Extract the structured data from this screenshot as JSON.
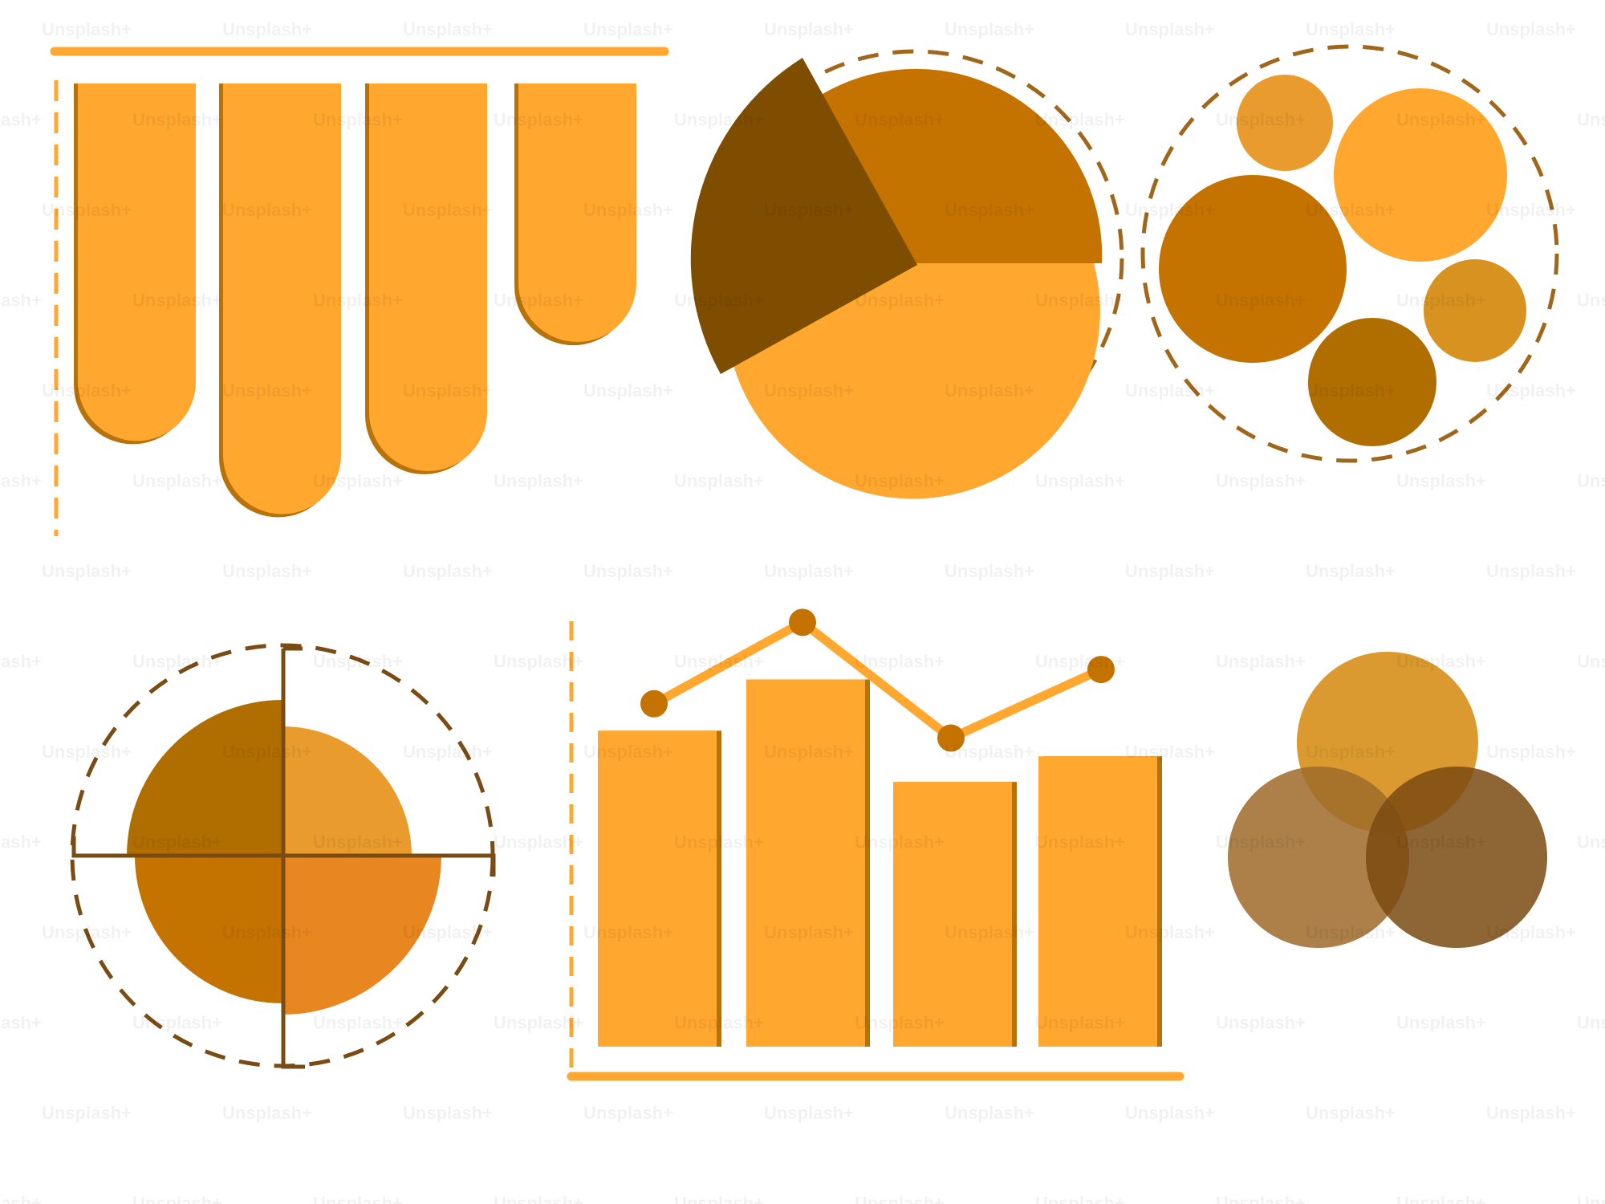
{
  "watermark": {
    "text": "Unsplash+"
  },
  "colors": {
    "light_orange": "#FFA72F",
    "orange_shadow": "#B7720A",
    "amber": "#C47300",
    "dark_brown": "#7E4D00",
    "golden": "#E99B2E",
    "golden_dark": "#D8921F",
    "dark_gold": "#B06D00",
    "deep_orange": "#E88620",
    "dashed_gold": "#A0661A",
    "dashed_brown": "#7A4B12",
    "venn_top": "#D8921F",
    "venn_left": "#9E6B2A",
    "venn_right": "#7A4A10"
  },
  "graphics": [
    {
      "name": "hanging-bars-graphic",
      "kind": "hanging-bars",
      "values": [
        0.83,
        1.0,
        0.9,
        0.6
      ]
    },
    {
      "name": "pie-chart-graphic",
      "kind": "pie"
    },
    {
      "name": "bubble-cluster-graphic",
      "kind": "bubbles"
    },
    {
      "name": "quadrant-circle-graphic",
      "kind": "quadrant"
    },
    {
      "name": "bar-line-combo-graphic",
      "kind": "bar-line",
      "bar_values": [
        0.74,
        0.86,
        0.62,
        0.68
      ],
      "line_values": [
        0.8,
        0.99,
        0.72,
        0.88
      ]
    },
    {
      "name": "venn-diagram-graphic",
      "kind": "venn"
    }
  ]
}
